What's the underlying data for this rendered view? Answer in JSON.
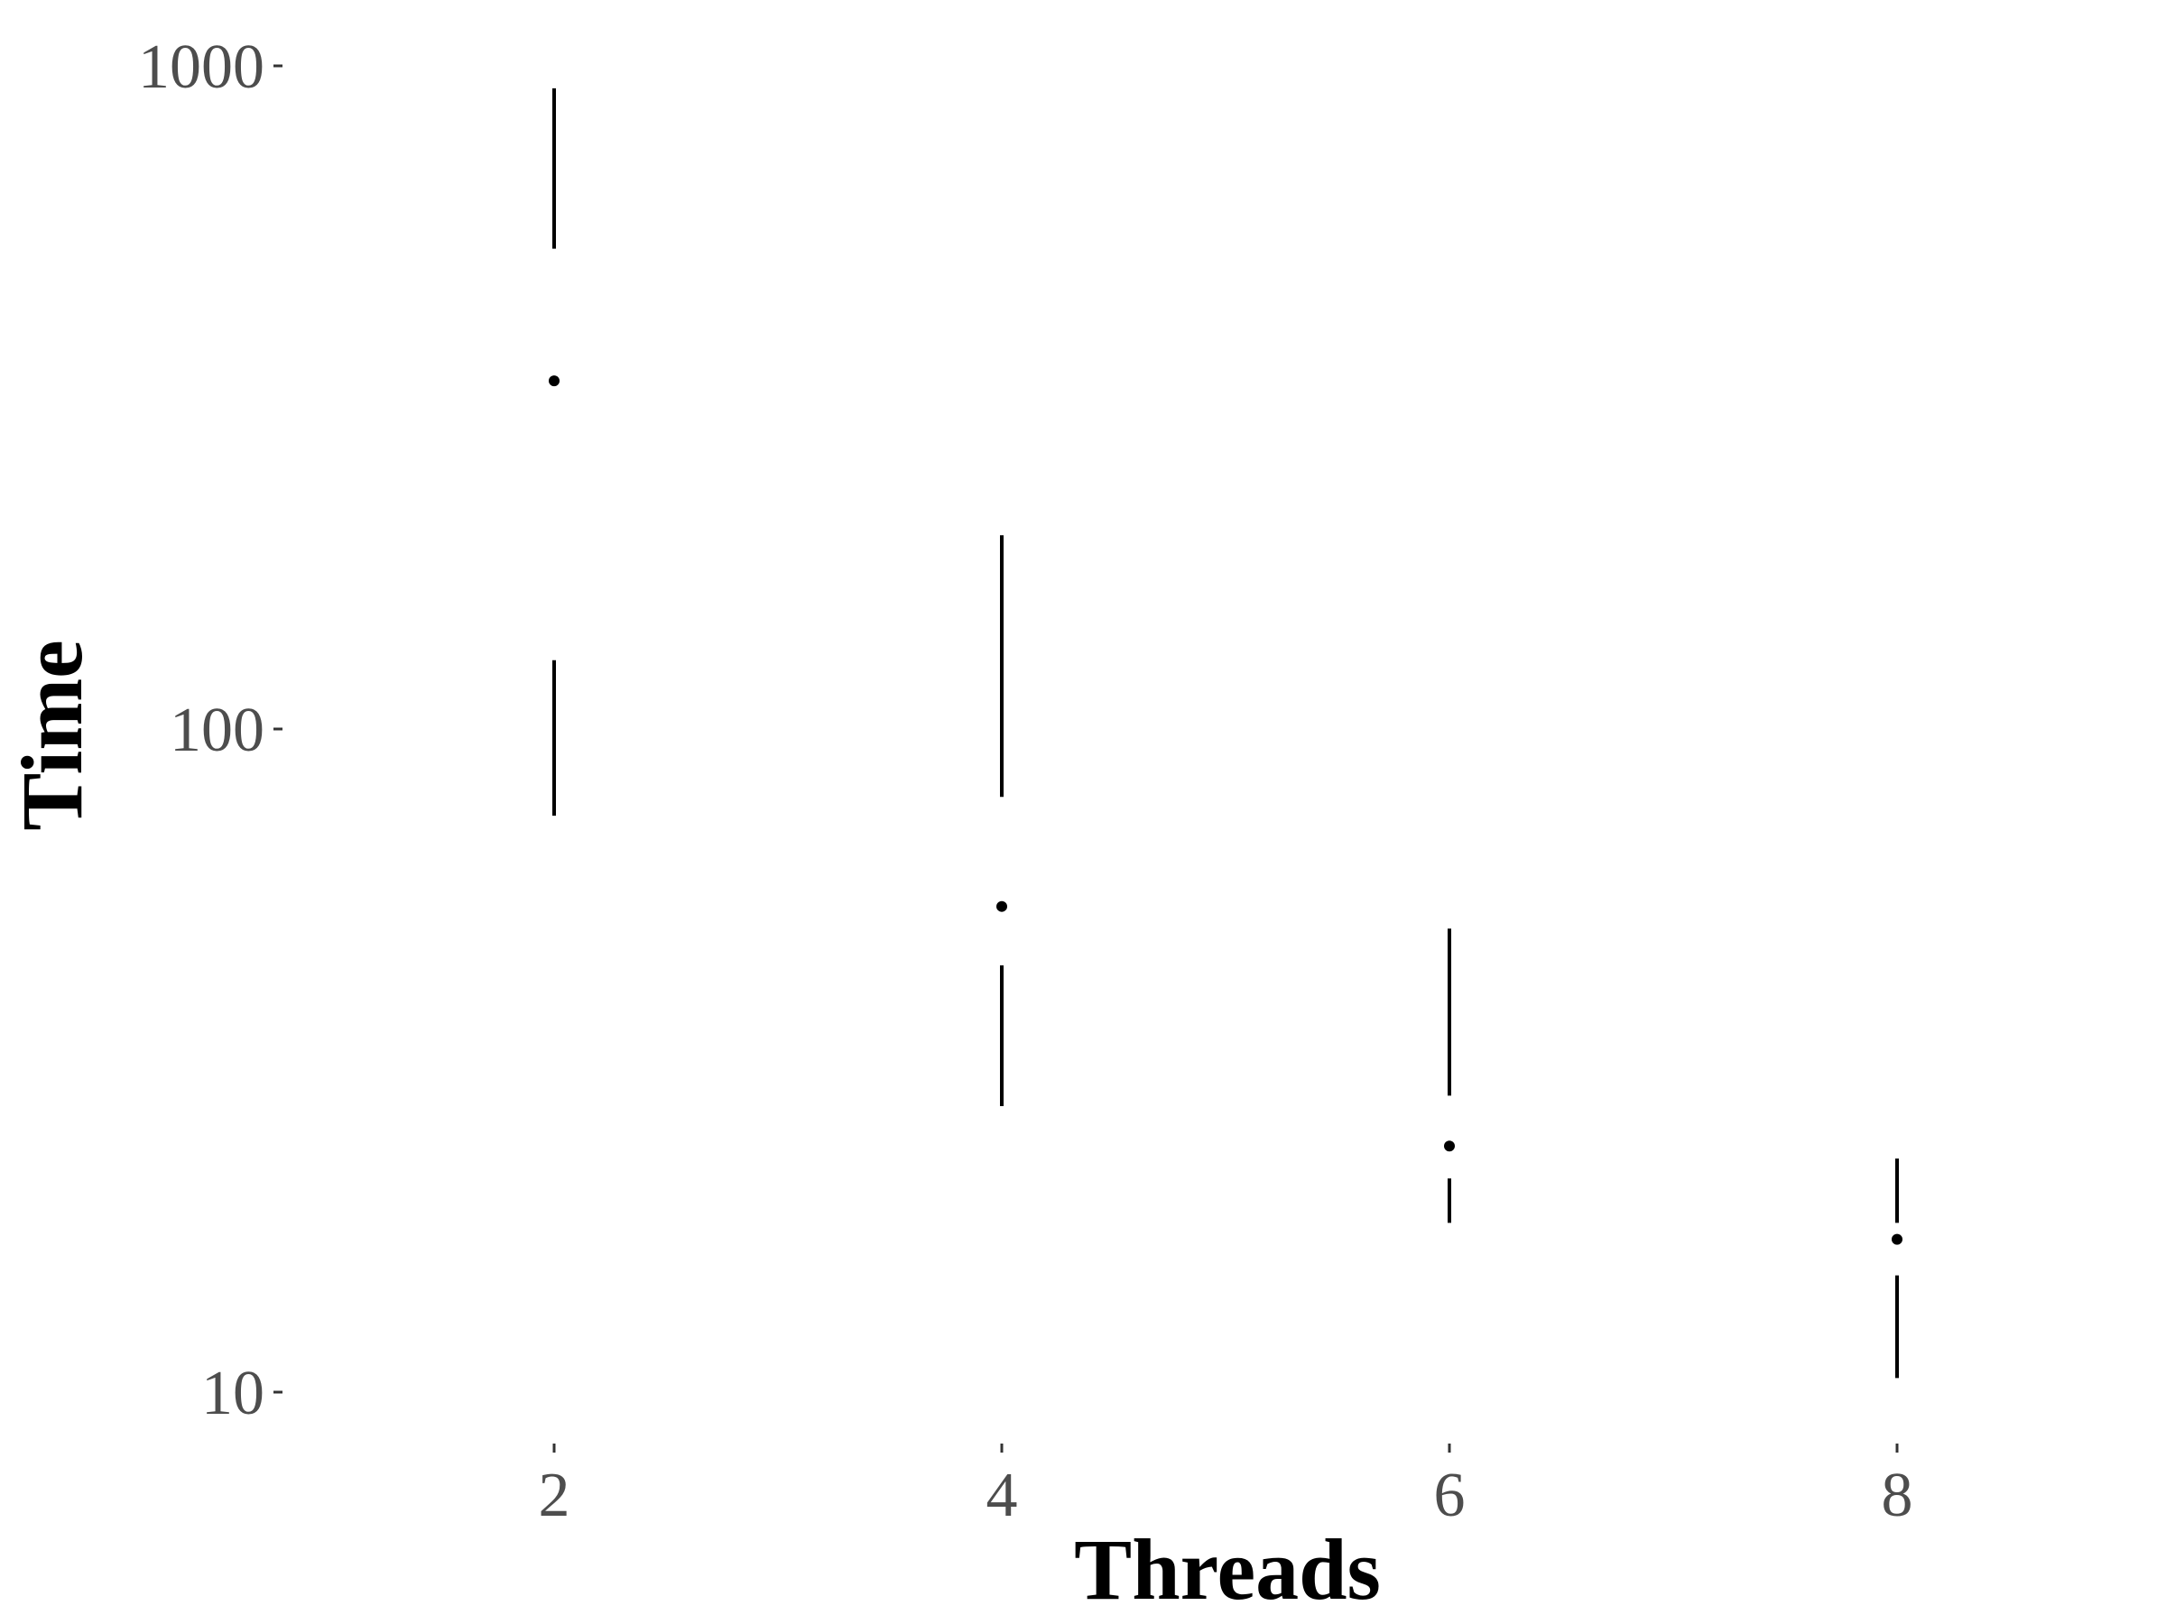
{
  "chart_data": {
    "type": "box",
    "style": "tufte-boxplot",
    "xlabel": "Threads",
    "ylabel": "Time",
    "y_scale": "log10",
    "ylim": [
      8,
      1200
    ],
    "xlim": [
      1,
      9.5
    ],
    "x_ticks": [
      2,
      4,
      6,
      8
    ],
    "x_tick_labels": [
      "2",
      "4",
      "6",
      "8"
    ],
    "y_ticks": [
      10,
      100,
      1000
    ],
    "y_tick_labels": [
      "10",
      "100",
      "1000"
    ],
    "grid": false,
    "legend": "none",
    "colors": {
      "marks": "#000000",
      "tick_labels": "#4d4d4d",
      "background": "#ffffff"
    },
    "series": [
      {
        "boxes": [
          {
            "x": 2,
            "min": 74,
            "q1": 127,
            "median": 335,
            "q3": 530,
            "max": 925
          },
          {
            "x": 4,
            "min": 27,
            "q1": 44,
            "median": 54,
            "q3": 79,
            "max": 196
          },
          {
            "x": 6,
            "min": 18,
            "q1": 21,
            "median": 23.5,
            "q3": 28,
            "max": 50
          },
          {
            "x": 8,
            "min": 10.5,
            "q1": 15,
            "median": 17,
            "q3": 18,
            "max": 22.5
          }
        ]
      }
    ]
  }
}
